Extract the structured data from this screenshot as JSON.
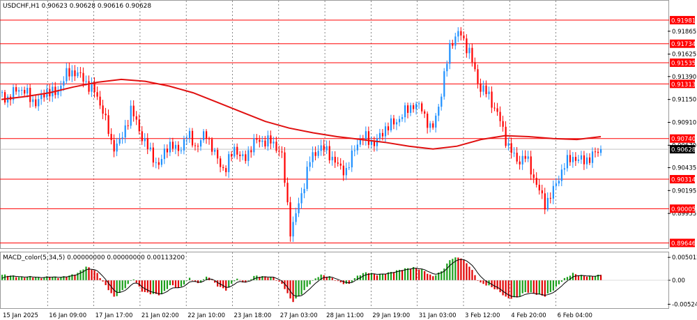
{
  "chart_data": [
    {
      "type": "candlestick",
      "title": "USDCHF,H1  0.90623 0.90628 0.90616 0.90628",
      "symbol": "USDCHF",
      "timeframe": "H1",
      "ohlc_header": {
        "open": "0.90623",
        "high": "0.90628",
        "low": "0.90616",
        "close": "0.90628"
      },
      "ylim": [
        0.8962,
        0.9209
      ],
      "y_ticks": [
        "0.91865",
        "0.91625",
        "0.91390",
        "0.91150",
        "0.90910",
        "0.90670",
        "0.90435",
        "0.90195",
        "0.89955"
      ],
      "x_ticks": [
        "15 Jan 2025",
        "16 Jan 09:00",
        "17 Jan 17:00",
        "21 Jan 02:00",
        "22 Jan 10:00",
        "23 Jan 18:00",
        "27 Jan 03:00",
        "28 Jan 11:00",
        "29 Jan 19:00",
        "31 Jan 03:00",
        "3 Feb 12:00",
        "4 Feb 20:00",
        "6 Feb 04:00"
      ],
      "horizontal_levels": [
        "0.91981",
        "0.91734",
        "0.91535",
        "0.91313",
        "0.90740",
        "0.90314",
        "0.90005",
        "0.89646"
      ],
      "current_price": "0.90628",
      "moving_average": [
        0.9115,
        0.9118,
        0.9122,
        0.9128,
        0.9133,
        0.9136,
        0.9134,
        0.9129,
        0.9122,
        0.9112,
        0.9102,
        0.9092,
        0.9085,
        0.908,
        0.9076,
        0.9073,
        0.907,
        0.9066,
        0.9063,
        0.9066,
        0.9073,
        0.9077,
        0.9076,
        0.9074,
        0.9073,
        0.9076
      ],
      "close_path": [
        0.9122,
        0.9115,
        0.9128,
        0.912,
        0.911,
        0.9125,
        0.912,
        0.914,
        0.9145,
        0.9135,
        0.9125,
        0.9105,
        0.9065,
        0.9072,
        0.9105,
        0.908,
        0.906,
        0.9045,
        0.907,
        0.906,
        0.9078,
        0.9065,
        0.908,
        0.9055,
        0.904,
        0.9065,
        0.905,
        0.907,
        0.9072,
        0.907,
        0.906,
        0.8975,
        0.901,
        0.905,
        0.9065,
        0.906,
        0.9045,
        0.904,
        0.907,
        0.9075,
        0.9068,
        0.9085,
        0.909,
        0.91,
        0.911,
        0.9105,
        0.908,
        0.912,
        0.9175,
        0.9185,
        0.9165,
        0.913,
        0.912,
        0.91,
        0.907,
        0.905,
        0.9055,
        0.903,
        0.9005,
        0.902,
        0.9045,
        0.9055,
        0.905,
        0.9055,
        0.9063
      ]
    },
    {
      "type": "histogram",
      "title": "MACD_color(5,34,5) 0.00000000 0.00000000 0.00113200",
      "y_ticks": [
        "0.0050123",
        "0.00",
        "-0.0052489"
      ],
      "ylim": [
        -0.0058,
        0.0058
      ],
      "histogram": [
        0.0012,
        0.001,
        0.0006,
        0.0008,
        0.0005,
        0.0008,
        0.0006,
        0.0009,
        0.0015,
        0.003,
        0.002,
        -0.001,
        -0.0038,
        -0.002,
        0.0005,
        -0.0025,
        -0.003,
        -0.0032,
        -0.001,
        -0.0018,
        0.0005,
        -0.0008,
        0.001,
        -0.0012,
        -0.0022,
        0.0004,
        -0.0006,
        0.001,
        0.0008,
        0.0006,
        -0.001,
        -0.0048,
        -0.003,
        -0.0005,
        0.0012,
        0.0008,
        -0.0004,
        -0.001,
        0.001,
        0.0018,
        0.0012,
        0.0015,
        0.002,
        0.0025,
        0.0028,
        0.0022,
        0.0008,
        0.002,
        0.0048,
        0.005,
        0.003,
        -0.0005,
        -0.0012,
        -0.0022,
        -0.004,
        -0.0038,
        -0.0025,
        -0.003,
        -0.0035,
        -0.002,
        0.0002,
        0.0015,
        0.001,
        0.0008,
        0.0012
      ],
      "colors": {
        "up": "#1a9e1a",
        "down": "#e00000",
        "signal": "#000000"
      }
    }
  ],
  "colors": {
    "bull": "#1e90ff",
    "bear": "#ff0000",
    "ma": "#e01010",
    "level": "#ff0000",
    "grid": "#333333",
    "label_bg": "#ff0000",
    "current_label_bg": "#000000"
  }
}
